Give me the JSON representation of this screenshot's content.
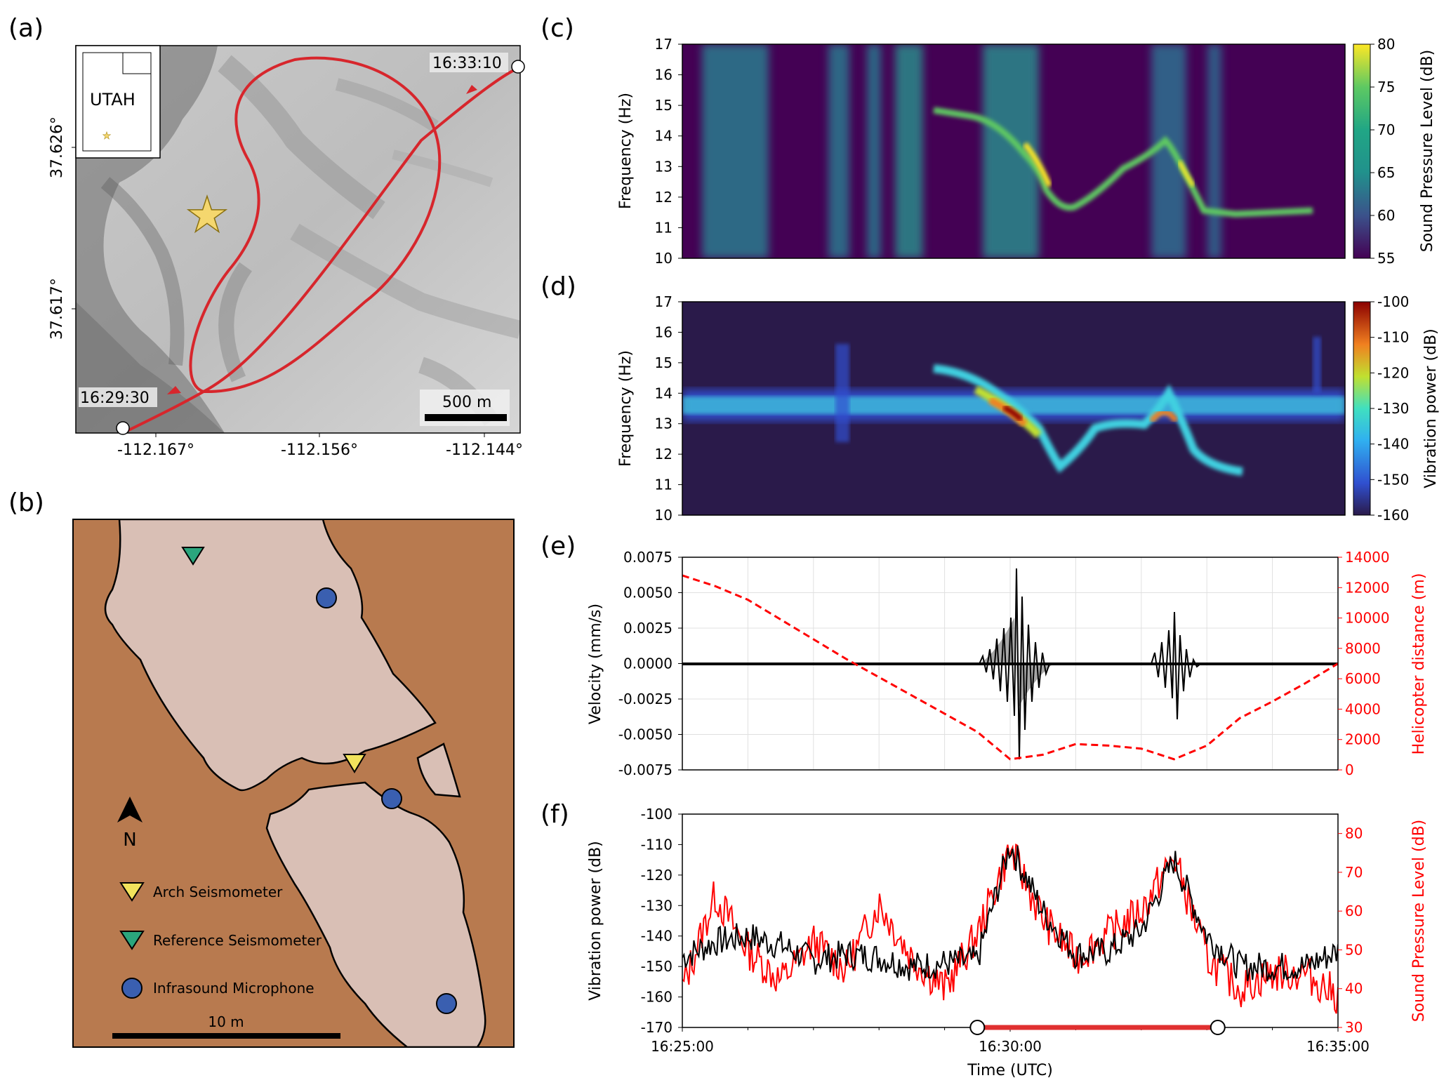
{
  "panels": {
    "a": "(a)",
    "b": "(b)",
    "c": "(c)",
    "d": "(d)",
    "e": "(e)",
    "f": "(f)"
  },
  "map": {
    "inset_label": "UTAH",
    "lat_ticks": [
      "37.626°",
      "37.617°"
    ],
    "lon_ticks": [
      "-112.167°",
      "-112.156°",
      "-112.144°"
    ],
    "scalebar": "500 m",
    "time_start": "16:29:30",
    "time_end": "16:33:10",
    "flight_color": "#d7262c",
    "star_color": "#f5d76e"
  },
  "site": {
    "north": "N",
    "scalebar": "10 m",
    "rock_color": "#b87a4f",
    "sand_color": "#d9bfb5",
    "legend": [
      {
        "label": "Arch Seismometer",
        "color": "#f2e35c",
        "icon": "triangle-down-icon"
      },
      {
        "label": "Reference Seismometer",
        "color": "#2ba67d",
        "icon": "triangle-down-icon"
      },
      {
        "label": "Infrasound Microphone",
        "color": "#3a5fb0",
        "icon": "circle-icon"
      }
    ]
  },
  "chart_data": [
    {
      "panel": "c",
      "type": "heatmap",
      "ylabel": "Frequency (Hz)",
      "yticks": [
        10,
        11,
        12,
        13,
        14,
        15,
        16,
        17
      ],
      "ylim": [
        10,
        17
      ],
      "colorbar": {
        "label": "Sound Pressure Level (dB)",
        "ticks": [
          55,
          60,
          65,
          70,
          75,
          80
        ],
        "colormap": "viridis"
      }
    },
    {
      "panel": "d",
      "type": "heatmap",
      "ylabel": "Frequency (Hz)",
      "yticks": [
        10,
        11,
        12,
        13,
        14,
        15,
        16,
        17
      ],
      "ylim": [
        10,
        17
      ],
      "colorbar": {
        "label": "Vibration power (dB)",
        "ticks": [
          -100,
          -110,
          -120,
          -130,
          -140,
          -150,
          -160
        ],
        "colormap": "jet"
      }
    },
    {
      "panel": "e",
      "type": "line",
      "ylabel": "Velocity (mm/s)",
      "y2label": "Helicopter distance (m)",
      "yticks": [
        "0.0075",
        "0.0050",
        "0.0025",
        "0.0000",
        "-0.0025",
        "-0.0050",
        "-0.0075"
      ],
      "ylim": [
        -0.0075,
        0.0075
      ],
      "y2ticks": [
        "14000",
        "12000",
        "10000",
        "8000",
        "6000",
        "4000",
        "2000",
        "0"
      ],
      "y2lim": [
        0,
        14000
      ],
      "grid": true,
      "series": [
        {
          "axis": "y2",
          "style": "dashed",
          "color": "#ff0000",
          "x_min": [
            0,
            0.5,
            1,
            1.5,
            2,
            2.5,
            3,
            3.5,
            4,
            4.5,
            5,
            5.5,
            6,
            6.5,
            7,
            7.5,
            8,
            8.5,
            9,
            9.5,
            10
          ],
          "values": [
            12800,
            12100,
            11200,
            9900,
            8600,
            7300,
            6100,
            4900,
            3700,
            2500,
            700,
            1000,
            1700,
            1600,
            1400,
            700,
            1600,
            3400,
            4500,
            5700,
            7000
          ]
        }
      ]
    },
    {
      "panel": "f",
      "type": "line",
      "xlabel": "Time (UTC)",
      "xticks": [
        "16:25:00",
        "16:30:00",
        "16:35:00"
      ],
      "ylabel": "Vibration power (dB)",
      "y2label": "Sound Pressure Level (dB)",
      "yticks": [
        -100,
        -110,
        -120,
        -130,
        -140,
        -150,
        -160,
        -170
      ],
      "ylim": [
        -170,
        -100
      ],
      "y2ticks": [
        30,
        40,
        50,
        60,
        70,
        80
      ],
      "y2lim": [
        30,
        85
      ],
      "flight_window": [
        "16:29:30",
        "16:33:10"
      ],
      "series": [
        {
          "axis": "y",
          "color": "#000000",
          "x_min": [
            0,
            0.5,
            1,
            1.5,
            2,
            2.5,
            3,
            3.5,
            4,
            4.5,
            5,
            5.5,
            6,
            6.5,
            7,
            7.5,
            8,
            8.5,
            9,
            9.5,
            10
          ],
          "values": [
            -147,
            -142,
            -140,
            -143,
            -148,
            -146,
            -147,
            -150,
            -149,
            -148,
            -110,
            -132,
            -146,
            -145,
            -138,
            -115,
            -140,
            -150,
            -150,
            -150,
            -145
          ]
        },
        {
          "axis": "y2",
          "color": "#ff0000",
          "x_min": [
            0,
            0.5,
            1,
            1.5,
            2,
            2.5,
            3,
            3.5,
            4,
            4.5,
            5,
            5.5,
            6,
            6.5,
            7,
            7.5,
            8,
            8.5,
            9,
            9.5,
            10
          ],
          "values": [
            40,
            64,
            50,
            42,
            52,
            45,
            62,
            48,
            40,
            54,
            76,
            58,
            48,
            54,
            60,
            74,
            48,
            40,
            44,
            44,
            38
          ]
        }
      ]
    }
  ]
}
